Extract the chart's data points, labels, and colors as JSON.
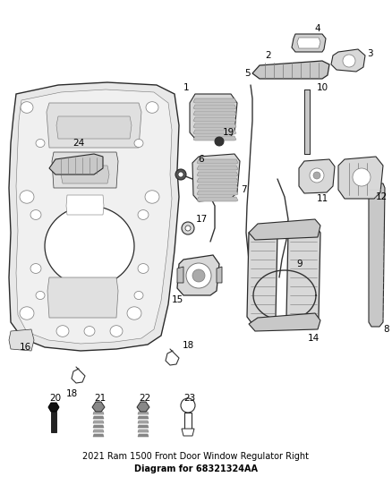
{
  "title_line1": "2021 Ram 1500 Front Door Window Regulator Right",
  "title_line2": "Diagram for 68321324AA",
  "title_fontsize": 7.0,
  "bg_color": "#ffffff",
  "fig_width": 4.38,
  "fig_height": 5.33,
  "dpi": 100,
  "label_fontsize": 7.5,
  "label_color": "#000000",
  "edge_color": "#2a2a2a",
  "mid_gray": "#777777",
  "light_gray": "#cccccc",
  "dark_gray": "#333333",
  "fill_light": "#e8e8e8",
  "fill_mid": "#c8c8c8",
  "fill_dark": "#555555",
  "fill_black": "#111111",
  "fill_white": "#ffffff"
}
